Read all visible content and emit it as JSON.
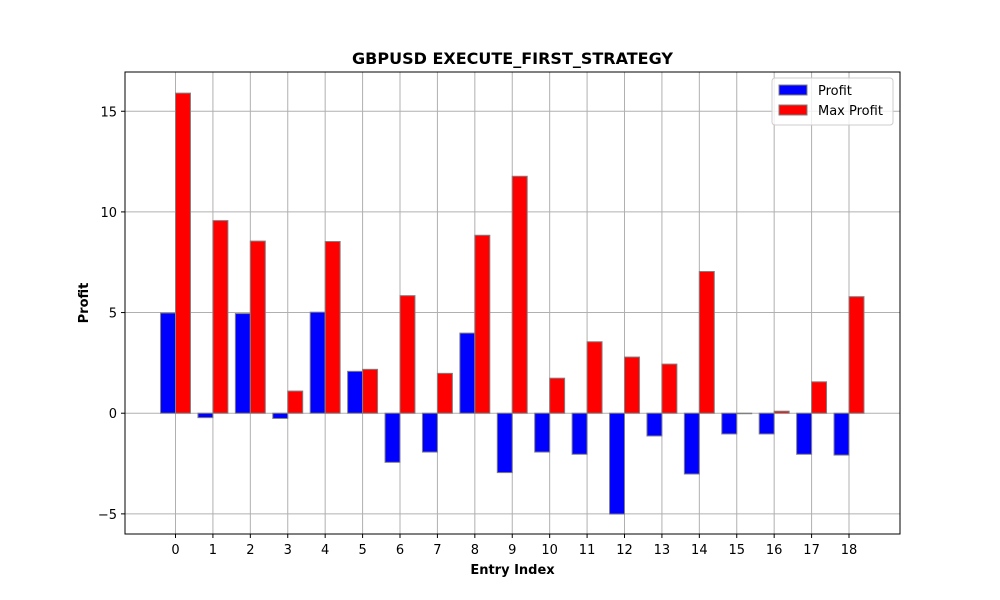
{
  "chart_data": {
    "type": "bar",
    "title": "GBPUSD EXECUTE_FIRST_STRATEGY",
    "xlabel": "Entry Index",
    "ylabel": "Profit",
    "categories": [
      "0",
      "1",
      "2",
      "3",
      "4",
      "5",
      "6",
      "7",
      "8",
      "9",
      "10",
      "11",
      "12",
      "13",
      "14",
      "15",
      "16",
      "17",
      "18"
    ],
    "series": [
      {
        "name": "Profit",
        "color": "#0000ff",
        "values": [
          4.98,
          -0.22,
          4.95,
          -0.26,
          5.02,
          2.08,
          -2.44,
          -1.93,
          3.98,
          -2.95,
          -1.93,
          -2.04,
          -5.01,
          -1.13,
          -3.02,
          -1.03,
          -1.03,
          -2.04,
          -2.08
        ]
      },
      {
        "name": "Max Profit",
        "color": "#ff0000",
        "values": [
          15.9,
          9.57,
          8.55,
          1.1,
          8.53,
          2.18,
          5.84,
          1.98,
          8.84,
          11.77,
          1.74,
          3.55,
          2.79,
          2.44,
          7.04,
          0.0,
          0.1,
          1.56,
          5.79
        ]
      }
    ],
    "ylim": [
      -6.0,
      16.95
    ],
    "yticks": [
      -5,
      0,
      5,
      10,
      15
    ],
    "ytick_labels": [
      "−5",
      "0",
      "5",
      "10",
      "15"
    ],
    "grid": true,
    "legend_position": "top-right",
    "bar_edge_color": "#808080"
  }
}
